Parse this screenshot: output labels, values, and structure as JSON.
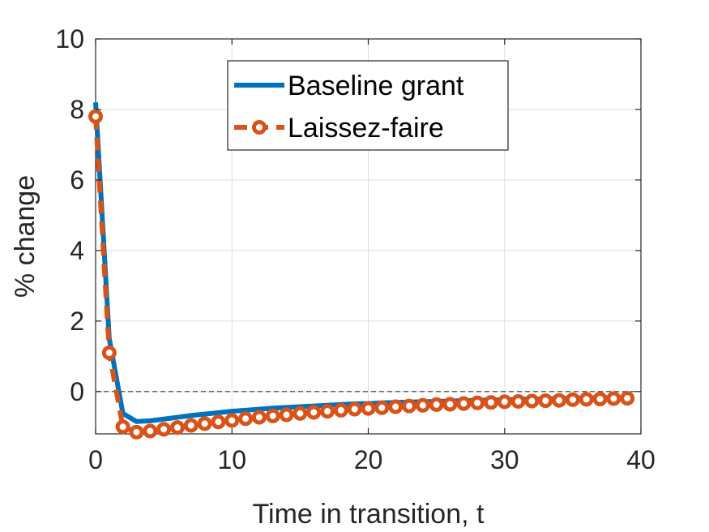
{
  "chart_data": {
    "type": "line",
    "title": "",
    "xlabel": "Time in transition, t",
    "ylabel": "% change",
    "xlim": [
      0,
      40
    ],
    "ylim": [
      -1.2,
      10
    ],
    "xticks": [
      0,
      10,
      20,
      30,
      40
    ],
    "xtick_labels": [
      "0",
      "10",
      "20",
      "30",
      "40"
    ],
    "yticks": [
      0,
      2,
      4,
      6,
      8,
      10
    ],
    "ytick_labels": [
      "0",
      "2",
      "4",
      "6",
      "8",
      "10"
    ],
    "grid": true,
    "legend_position": "top-center",
    "reference_line": {
      "y": 0,
      "style": "dashed"
    },
    "x": [
      0,
      1,
      2,
      3,
      4,
      5,
      6,
      7,
      8,
      9,
      10,
      11,
      12,
      13,
      14,
      15,
      16,
      17,
      18,
      19,
      20,
      21,
      22,
      23,
      24,
      25,
      26,
      27,
      28,
      29,
      30,
      31,
      32,
      33,
      34,
      35,
      36,
      37,
      38,
      39
    ],
    "series": [
      {
        "name": "Baseline grant",
        "color": "#0072BD",
        "style": "solid",
        "values": [
          8.2,
          1.5,
          -0.62,
          -0.85,
          -0.83,
          -0.78,
          -0.73,
          -0.68,
          -0.64,
          -0.6,
          -0.56,
          -0.53,
          -0.5,
          -0.47,
          -0.45,
          -0.43,
          -0.41,
          -0.39,
          -0.37,
          -0.35,
          -0.34,
          -0.32,
          -0.31,
          -0.3,
          -0.29,
          -0.28,
          -0.27,
          -0.26,
          -0.25,
          -0.24,
          -0.23,
          -0.22,
          -0.21,
          -0.21,
          -0.2,
          -0.19,
          -0.18,
          -0.18,
          -0.17,
          -0.17
        ]
      },
      {
        "name": "Laissez-faire",
        "color": "#D95319",
        "style": "dashed-circle",
        "values": [
          7.8,
          1.1,
          -1.0,
          -1.15,
          -1.12,
          -1.07,
          -1.02,
          -0.96,
          -0.91,
          -0.86,
          -0.82,
          -0.77,
          -0.73,
          -0.69,
          -0.66,
          -0.62,
          -0.59,
          -0.56,
          -0.53,
          -0.5,
          -0.48,
          -0.46,
          -0.43,
          -0.41,
          -0.39,
          -0.37,
          -0.36,
          -0.34,
          -0.32,
          -0.31,
          -0.29,
          -0.28,
          -0.27,
          -0.26,
          -0.25,
          -0.23,
          -0.22,
          -0.21,
          -0.2,
          -0.19
        ]
      }
    ]
  }
}
